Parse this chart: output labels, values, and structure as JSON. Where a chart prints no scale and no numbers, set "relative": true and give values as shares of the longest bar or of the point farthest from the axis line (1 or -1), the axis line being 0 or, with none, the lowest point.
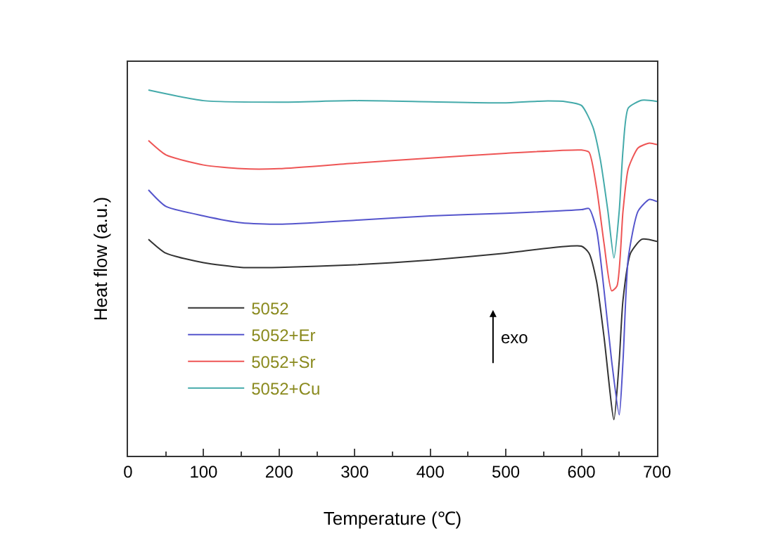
{
  "chart_data": {
    "type": "line",
    "relative": true,
    "xlabel": "Temperature (℃)",
    "ylabel": "Heat flow (a.u.)",
    "xlim": [
      0,
      700
    ],
    "xticks": [
      0,
      100,
      200,
      300,
      400,
      500,
      600,
      700
    ],
    "grid": false,
    "legend": "bottom left",
    "marker": "none",
    "line_style": "solid",
    "annotations": [
      "exo"
    ],
    "series": [
      {
        "name": "5052",
        "color": "#333333",
        "x": [
          27,
          50,
          100,
          150,
          200,
          300,
          400,
          500,
          600,
          610,
          620,
          630,
          643,
          650,
          655,
          665,
          680,
          700
        ],
        "values": [
          0.592,
          0.554,
          0.528,
          0.515,
          0.515,
          0.522,
          0.535,
          0.554,
          0.573,
          0.554,
          0.477,
          0.323,
          0.099,
          0.259,
          0.426,
          0.554,
          0.592,
          0.586
        ]
      },
      {
        "name": "5052+Er",
        "color": "#5555cc",
        "x": [
          27,
          50,
          100,
          150,
          200,
          300,
          400,
          500,
          600,
          610,
          620,
          630,
          640,
          650,
          655,
          662,
          675,
          690,
          700
        ],
        "values": [
          0.727,
          0.682,
          0.656,
          0.637,
          0.633,
          0.644,
          0.656,
          0.663,
          0.673,
          0.676,
          0.618,
          0.451,
          0.259,
          0.112,
          0.259,
          0.541,
          0.669,
          0.701,
          0.695
        ]
      },
      {
        "name": "5052+Sr",
        "color": "#ee5555",
        "x": [
          27,
          50,
          100,
          150,
          200,
          300,
          400,
          500,
          600,
          610,
          620,
          630,
          640,
          647,
          655,
          662,
          675,
          690,
          700
        ],
        "values": [
          0.862,
          0.823,
          0.795,
          0.785,
          0.785,
          0.8,
          0.814,
          0.827,
          0.836,
          0.83,
          0.733,
          0.579,
          0.451,
          0.464,
          0.669,
          0.785,
          0.842,
          0.855,
          0.851
        ]
      },
      {
        "name": "5052+Cu",
        "color": "#44aaaa",
        "x": [
          27,
          100,
          200,
          300,
          400,
          500,
          550,
          580,
          600,
          615,
          625,
          635,
          643,
          650,
          655,
          662,
          680,
          700
        ],
        "values": [
          1.0,
          0.971,
          0.967,
          0.971,
          0.968,
          0.965,
          0.97,
          0.968,
          0.958,
          0.9,
          0.81,
          0.669,
          0.541,
          0.669,
          0.836,
          0.951,
          0.972,
          0.969
        ]
      }
    ]
  }
}
